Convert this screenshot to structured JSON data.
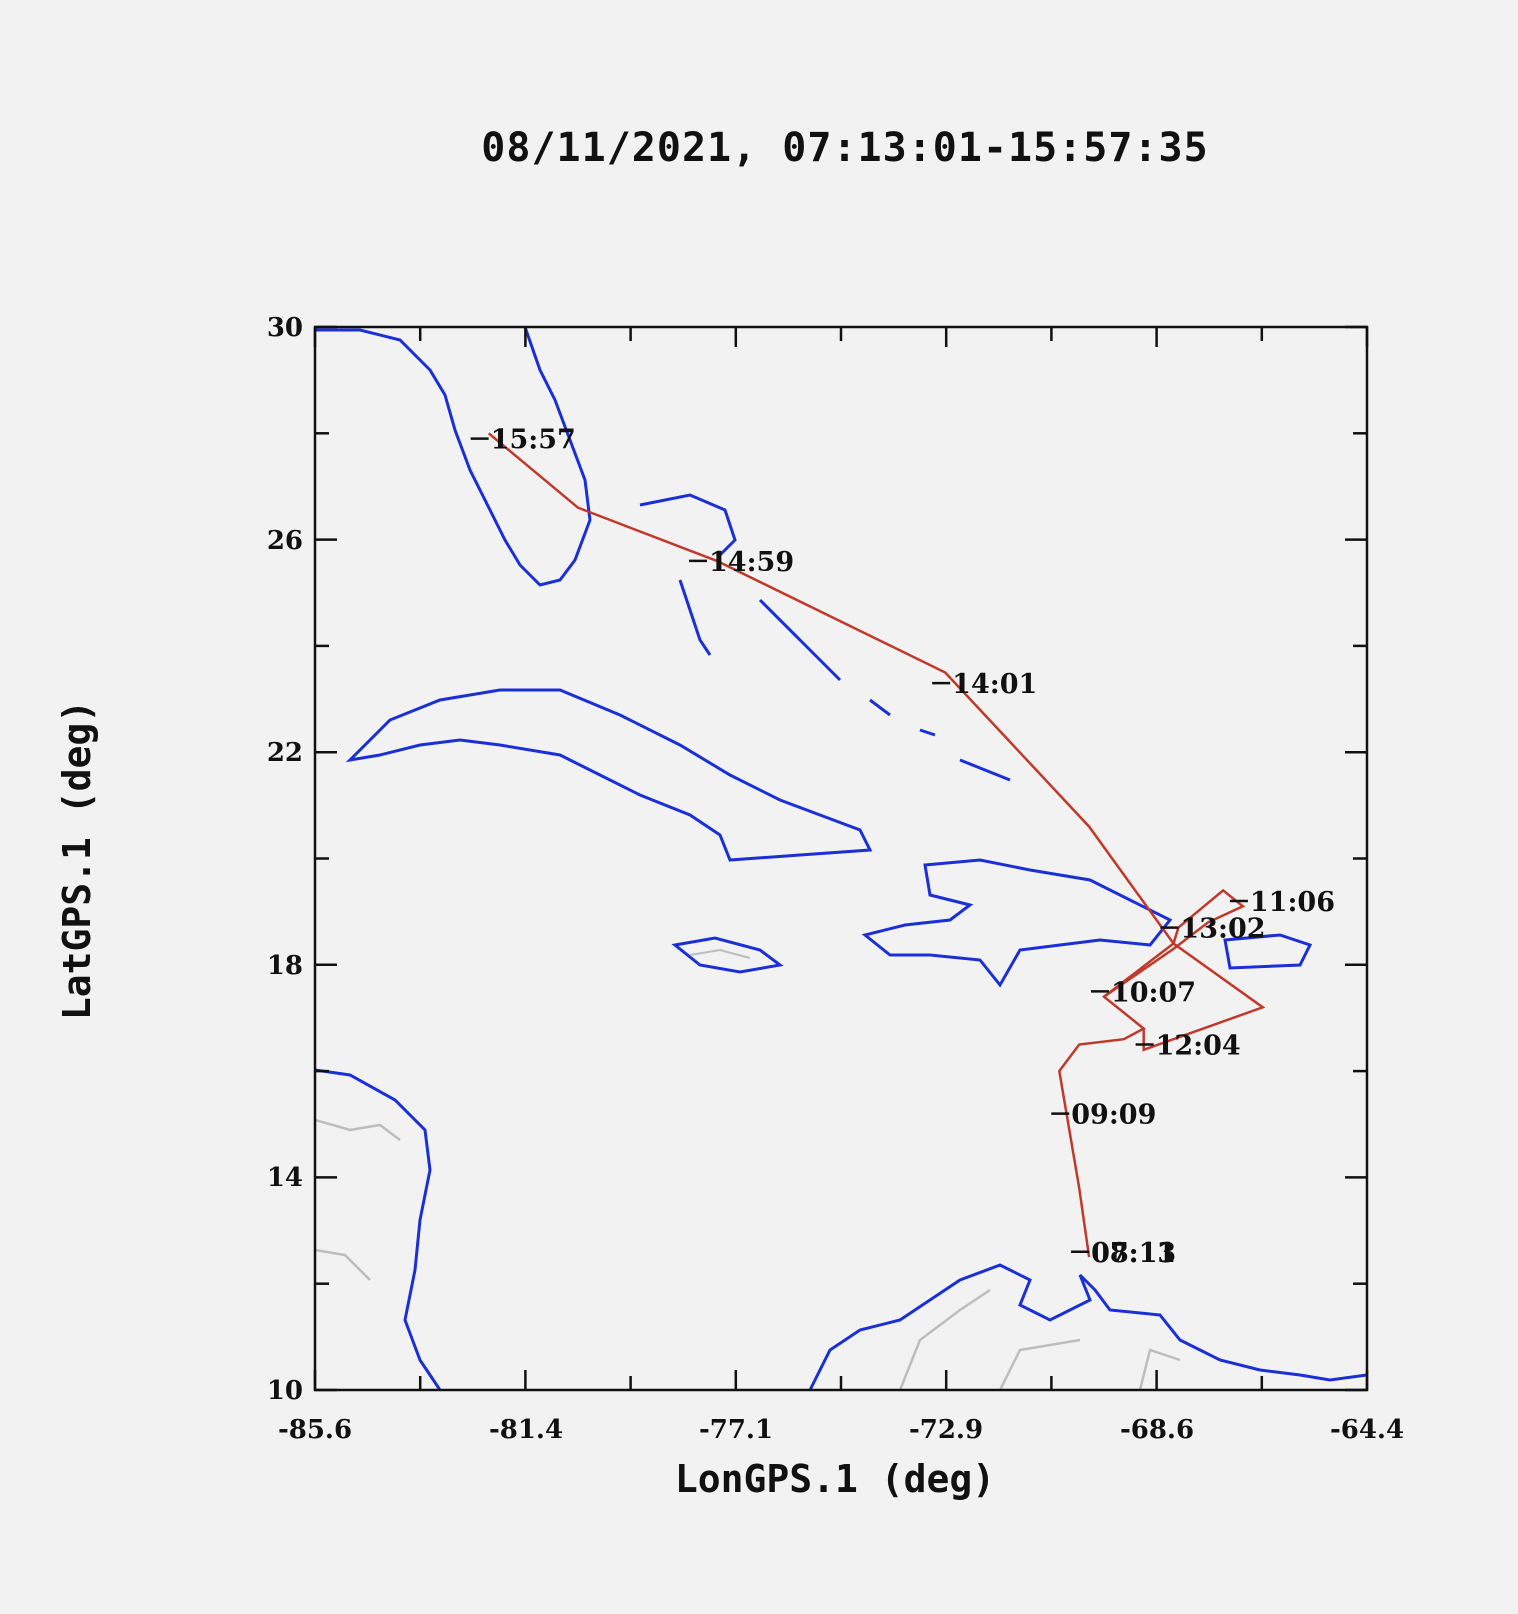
{
  "title": "08/11/2021, 07:13:01-15:57:35",
  "map": {
    "xlabel": "LonGPS.1 (deg)",
    "ylabel": "LatGPS.1 (deg)",
    "lon_range": [
      -85.6,
      -64.4
    ],
    "lat_range": [
      10,
      30
    ],
    "x_ticks": [
      "-85.6",
      "-81.4",
      "-77.1",
      "-72.9",
      "-68.6",
      "-64.4"
    ],
    "y_ticks": [
      "10",
      "14",
      "18",
      "22",
      "26",
      "30"
    ],
    "colors": {
      "coastline": "#1a2fd6",
      "borders": "#bdbdbd",
      "track": "#c0392b",
      "frame": "#111111",
      "background": "#f2f2f2"
    },
    "time_labels": [
      {
        "text": "15:57",
        "lon": -82.1,
        "lat": 27.9
      },
      {
        "text": "14:59",
        "lon": -77.7,
        "lat": 25.6
      },
      {
        "text": "14:01",
        "lon": -72.8,
        "lat": 23.3
      },
      {
        "text": "13:02",
        "lon": -68.2,
        "lat": 18.7
      },
      {
        "text": "11:06",
        "lon": -66.8,
        "lat": 19.2
      },
      {
        "text": "10:07",
        "lon": -69.6,
        "lat": 17.5
      },
      {
        "text": "12:04",
        "lon": -68.7,
        "lat": 16.5
      },
      {
        "text": "09:09",
        "lon": -70.4,
        "lat": 15.2
      },
      {
        "text": "08:11",
        "lon": -70.0,
        "lat": 12.6
      },
      {
        "text": "07:13",
        "lon": -70.0,
        "lat": 12.6
      }
    ],
    "flight_track": [
      [
        -70.0,
        12.5
      ],
      [
        -70.2,
        13.8
      ],
      [
        -70.6,
        16.0
      ],
      [
        -70.2,
        16.5
      ],
      [
        -69.3,
        16.6
      ],
      [
        -68.9,
        16.8
      ],
      [
        -69.7,
        17.4
      ],
      [
        -68.3,
        18.3
      ],
      [
        -67.6,
        18.8
      ],
      [
        -66.9,
        19.1
      ],
      [
        -67.3,
        19.4
      ],
      [
        -68.2,
        18.7
      ],
      [
        -68.3,
        18.4
      ],
      [
        -66.5,
        17.2
      ],
      [
        -68.9,
        16.4
      ],
      [
        -68.9,
        16.8
      ],
      [
        -69.7,
        17.4
      ],
      [
        -68.3,
        18.4
      ],
      [
        -70.0,
        20.6
      ],
      [
        -72.9,
        23.5
      ],
      [
        -77.5,
        25.6
      ],
      [
        -80.3,
        26.6
      ],
      [
        -82.1,
        28.0
      ]
    ]
  }
}
